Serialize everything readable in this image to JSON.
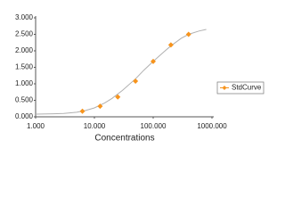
{
  "chart_data": {
    "type": "scatter",
    "x_label": "Concentrations",
    "xscale": "log",
    "xlim": [
      1,
      1000
    ],
    "xticks": [
      {
        "value": 1,
        "label": "1.000"
      },
      {
        "value": 10,
        "label": "10.000"
      },
      {
        "value": 100,
        "label": "100.000"
      },
      {
        "value": 1000,
        "label": "1000.000"
      }
    ],
    "ylim": [
      0,
      3
    ],
    "yticks": [
      {
        "value": 0,
        "label": "0.000"
      },
      {
        "value": 0.5,
        "label": "0.500"
      },
      {
        "value": 1,
        "label": "1.000"
      },
      {
        "value": 1.5,
        "label": "1.500"
      },
      {
        "value": 2,
        "label": "2.000"
      },
      {
        "value": 2.5,
        "label": "2.500"
      },
      {
        "value": 3,
        "label": "3.000"
      }
    ],
    "grid": false,
    "legend": "right",
    "series": [
      {
        "name": "StdCurve",
        "color": "#f7941d",
        "x": [
          6.25,
          12.5,
          25,
          50,
          100,
          200,
          400
        ],
        "values": [
          0.17,
          0.32,
          0.6,
          1.08,
          1.68,
          2.18,
          2.5
        ]
      }
    ],
    "curve": {
      "color": "#b0b0b0",
      "x": [
        1,
        2,
        3,
        5,
        7,
        10,
        15,
        20,
        30,
        50,
        70,
        100,
        150,
        200,
        300,
        400,
        600,
        800
      ],
      "values": [
        0.08,
        0.09,
        0.1,
        0.14,
        0.19,
        0.27,
        0.42,
        0.56,
        0.8,
        1.15,
        1.42,
        1.68,
        1.96,
        2.15,
        2.38,
        2.5,
        2.6,
        2.65
      ]
    }
  }
}
